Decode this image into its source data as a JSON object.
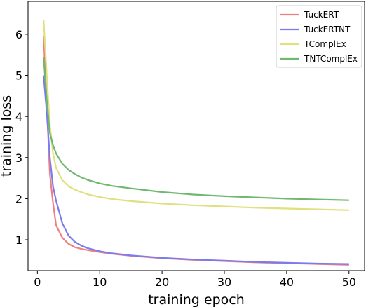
{
  "chart_data": {
    "type": "line",
    "xlabel": "training epoch",
    "ylabel": "training loss",
    "xlim": [
      -1.5,
      52.5
    ],
    "ylim": [
      0.25,
      6.8
    ],
    "xticks": [
      0,
      10,
      20,
      30,
      40,
      50
    ],
    "yticks": [
      1,
      2,
      3,
      4,
      5,
      6
    ],
    "grid": false,
    "legend_position": "top-right",
    "series": [
      {
        "name": "TuckERT",
        "color": "#f08080",
        "x": [
          1,
          1.5,
          2,
          2.5,
          3,
          4,
          5,
          6,
          7,
          8,
          10,
          12,
          15,
          20,
          25,
          30,
          35,
          40,
          45,
          50
        ],
        "y": [
          5.95,
          4.3,
          2.6,
          1.9,
          1.35,
          1.05,
          0.9,
          0.82,
          0.78,
          0.75,
          0.7,
          0.66,
          0.61,
          0.55,
          0.51,
          0.48,
          0.45,
          0.43,
          0.41,
          0.39
        ]
      },
      {
        "name": "TuckERTNT",
        "color": "#7b7bef",
        "x": [
          1,
          1.5,
          2,
          2.5,
          3,
          4,
          5,
          6,
          7,
          8,
          10,
          12,
          15,
          20,
          25,
          30,
          35,
          40,
          45,
          50
        ],
        "y": [
          5.0,
          4.1,
          3.0,
          2.3,
          1.95,
          1.4,
          1.1,
          0.95,
          0.86,
          0.8,
          0.72,
          0.67,
          0.62,
          0.56,
          0.52,
          0.49,
          0.46,
          0.44,
          0.42,
          0.41
        ]
      },
      {
        "name": "TComplEx",
        "color": "#e0e080",
        "x": [
          1,
          1.5,
          2,
          2.5,
          3,
          4,
          5,
          6,
          7,
          8,
          10,
          12,
          15,
          20,
          25,
          30,
          35,
          40,
          45,
          50
        ],
        "y": [
          6.35,
          5.0,
          3.8,
          3.1,
          2.75,
          2.45,
          2.3,
          2.22,
          2.16,
          2.11,
          2.04,
          1.99,
          1.94,
          1.88,
          1.84,
          1.81,
          1.78,
          1.76,
          1.74,
          1.72
        ]
      },
      {
        "name": "TNTComplEx",
        "color": "#70b870",
        "x": [
          1,
          1.5,
          2,
          2.5,
          3,
          4,
          5,
          6,
          7,
          8,
          10,
          12,
          15,
          20,
          25,
          30,
          35,
          40,
          45,
          50
        ],
        "y": [
          5.45,
          4.4,
          3.6,
          3.3,
          3.1,
          2.85,
          2.7,
          2.6,
          2.52,
          2.46,
          2.37,
          2.31,
          2.25,
          2.16,
          2.1,
          2.06,
          2.03,
          2.0,
          1.98,
          1.96
        ]
      }
    ]
  }
}
